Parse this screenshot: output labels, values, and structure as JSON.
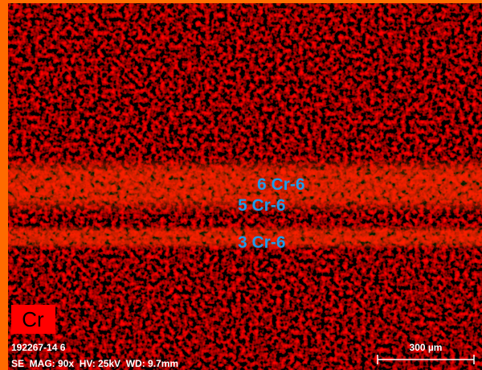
{
  "image": {
    "phase_labels": [
      "6 Cr-6",
      "5 Cr-6",
      "3 Cr-6"
    ],
    "element": "Cr",
    "sample_id": "192267-14 6",
    "acquisition": "SE  MAG: 90x  HV: 25kV  WD: 9.7mm",
    "scale_bar": "300 µm"
  }
}
